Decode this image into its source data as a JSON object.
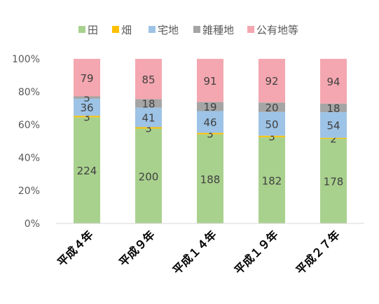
{
  "chart_data": {
    "type": "bar",
    "stacked": "percent",
    "categories": [
      "平成４年",
      "平成９年",
      "平成１４年",
      "平成１９年",
      "平成２７年"
    ],
    "series": [
      {
        "name": "田",
        "color": "#A9D18E",
        "values": [
          224,
          200,
          188,
          182,
          178
        ]
      },
      {
        "name": "畑",
        "color": "#FFC000",
        "values": [
          3,
          3,
          3,
          3,
          2
        ]
      },
      {
        "name": "宅地",
        "color": "#9DC3E6",
        "values": [
          36,
          41,
          46,
          50,
          54
        ]
      },
      {
        "name": "雑種地",
        "color": "#A5A5A5",
        "values": [
          5,
          18,
          19,
          20,
          18
        ]
      },
      {
        "name": "公有地等",
        "color": "#F4A7B0",
        "values": [
          79,
          85,
          91,
          92,
          94
        ]
      }
    ],
    "yticks": [
      "0%",
      "20%",
      "40%",
      "60%",
      "80%",
      "100%"
    ],
    "ylim": [
      0,
      1
    ],
    "legend": "top",
    "grid": false
  }
}
